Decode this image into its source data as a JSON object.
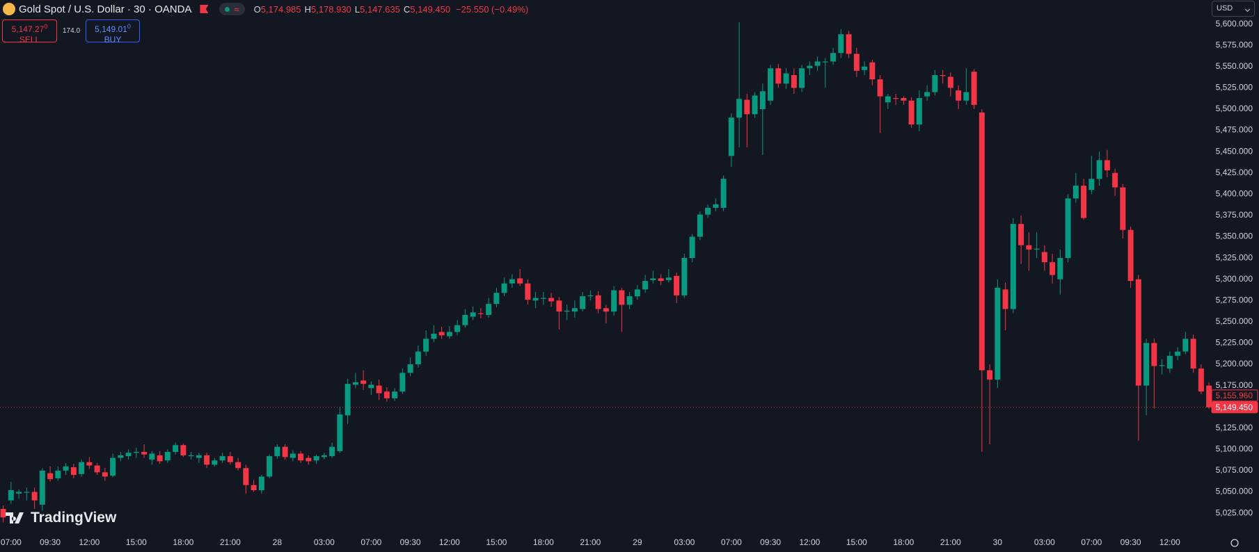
{
  "header": {
    "title": "Gold Spot / U.S. Dollar · 30 · OANDA",
    "indicator_icon": "≈",
    "ohlc_legend": [
      {
        "key": "O",
        "value": "5,174.985"
      },
      {
        "key": "H",
        "value": "5,178.930"
      },
      {
        "key": "L",
        "value": "5,147.635"
      },
      {
        "key": "C",
        "value": "5,149.450"
      }
    ],
    "change": "−25.550 (−0.49%)"
  },
  "trade": {
    "sell": {
      "price": "5,147.27",
      "pip": "0",
      "label": "SELL"
    },
    "spread": "174.0",
    "buy": {
      "price": "5,149.01",
      "pip": "0",
      "label": "BUY"
    }
  },
  "currency": "USD",
  "brand": "TradingView",
  "chart_data": {
    "type": "candlestick",
    "up_color": "#089981",
    "down_color": "#f23645",
    "grid": false,
    "ylim": [
      5001.4,
      5628.3
    ],
    "yticks": [
      {
        "value": 5025,
        "label": "5,025.000"
      },
      {
        "value": 5050,
        "label": "5,050.000"
      },
      {
        "value": 5075,
        "label": "5,075.000"
      },
      {
        "value": 5100,
        "label": "5,100.000"
      },
      {
        "value": 5125,
        "label": "5,125.000"
      },
      {
        "value": 5150,
        "label": "5,150.000"
      },
      {
        "value": 5175,
        "label": "5,175.000"
      },
      {
        "value": 5200,
        "label": "5,200.000"
      },
      {
        "value": 5225,
        "label": "5,225.000"
      },
      {
        "value": 5250,
        "label": "5,250.000"
      },
      {
        "value": 5275,
        "label": "5,275.000"
      },
      {
        "value": 5300,
        "label": "5,300.000"
      },
      {
        "value": 5325,
        "label": "5,325.000"
      },
      {
        "value": 5350,
        "label": "5,350.000"
      },
      {
        "value": 5375,
        "label": "5,375.000"
      },
      {
        "value": 5400,
        "label": "5,400.000"
      },
      {
        "value": 5425,
        "label": "5,425.000"
      },
      {
        "value": 5450,
        "label": "5,450.000"
      },
      {
        "value": 5475,
        "label": "5,475.000"
      },
      {
        "value": 5500,
        "label": "5,500.000"
      },
      {
        "value": 5525,
        "label": "5,525.000"
      },
      {
        "value": 5550,
        "label": "5,550.000"
      },
      {
        "value": 5575,
        "label": "5,575.000"
      },
      {
        "value": 5600,
        "label": "5,600.000"
      }
    ],
    "price_labels": [
      {
        "value": 5155.96,
        "label": "5,155.960"
      },
      {
        "value": 5149.45,
        "label": "5,149.450"
      }
    ],
    "categories": [
      null,
      "07:00",
      null,
      null,
      null,
      null,
      "09:30",
      null,
      null,
      null,
      null,
      "12:00",
      null,
      null,
      null,
      null,
      null,
      "15:00",
      null,
      null,
      null,
      null,
      null,
      "18:00",
      null,
      null,
      null,
      null,
      null,
      "21:00",
      null,
      null,
      null,
      null,
      null,
      "28",
      null,
      null,
      null,
      null,
      null,
      "03:00",
      null,
      null,
      null,
      null,
      null,
      "07:00",
      null,
      null,
      null,
      null,
      "09:30",
      null,
      null,
      null,
      null,
      "12:00",
      null,
      null,
      null,
      null,
      null,
      "15:00",
      null,
      null,
      null,
      null,
      null,
      "18:00",
      null,
      null,
      null,
      null,
      null,
      "21:00",
      null,
      null,
      null,
      null,
      null,
      "29",
      null,
      null,
      null,
      null,
      null,
      "03:00",
      null,
      null,
      null,
      null,
      null,
      "07:00",
      null,
      null,
      null,
      null,
      "09:30",
      null,
      null,
      null,
      null,
      "12:00",
      null,
      null,
      null,
      null,
      null,
      "15:00",
      null,
      null,
      null,
      null,
      null,
      "18:00",
      null,
      null,
      null,
      null,
      null,
      "21:00",
      null,
      null,
      null,
      null,
      null,
      "30",
      null,
      null,
      null,
      null,
      null,
      "03:00",
      null,
      null,
      null,
      null,
      null,
      "07:00",
      null,
      null,
      null,
      null,
      "09:30",
      null,
      null,
      null,
      null,
      "12:00",
      null,
      null,
      null,
      null,
      null
    ],
    "ohlc": [
      [
        5030,
        5034,
        5014,
        5020
      ],
      [
        5040,
        5062,
        5036,
        5052
      ],
      [
        5048,
        5053,
        5042,
        5050
      ],
      [
        5049,
        5055,
        5040,
        5050
      ],
      [
        5050,
        5055,
        5030,
        5040
      ],
      [
        5035,
        5078,
        5028,
        5075
      ],
      [
        5072,
        5080,
        5062,
        5065
      ],
      [
        5066,
        5080,
        5063,
        5075
      ],
      [
        5075,
        5084,
        5070,
        5080
      ],
      [
        5079,
        5083,
        5066,
        5070
      ],
      [
        5071,
        5088,
        5068,
        5085
      ],
      [
        5085,
        5091,
        5077,
        5081
      ],
      [
        5081,
        5084,
        5070,
        5073
      ],
      [
        5073,
        5078,
        5063,
        5068
      ],
      [
        5069,
        5095,
        5067,
        5090
      ],
      [
        5090,
        5097,
        5086,
        5093
      ],
      [
        5092,
        5100,
        5088,
        5096
      ],
      [
        5096,
        5102,
        5090,
        5097
      ],
      [
        5097,
        5106,
        5090,
        5094
      ],
      [
        5088,
        5098,
        5082,
        5095
      ],
      [
        5093,
        5098,
        5083,
        5086
      ],
      [
        5087,
        5100,
        5084,
        5097
      ],
      [
        5097,
        5108,
        5094,
        5105
      ],
      [
        5105,
        5107,
        5091,
        5093
      ],
      [
        5092,
        5097,
        5088,
        5093
      ],
      [
        5090,
        5096,
        5084,
        5093
      ],
      [
        5093,
        5096,
        5078,
        5082
      ],
      [
        5082,
        5090,
        5080,
        5087
      ],
      [
        5087,
        5096,
        5084,
        5092
      ],
      [
        5092,
        5097,
        5082,
        5085
      ],
      [
        5085,
        5090,
        5075,
        5078
      ],
      [
        5078,
        5082,
        5048,
        5058
      ],
      [
        5058,
        5064,
        5050,
        5052
      ],
      [
        5052,
        5070,
        5048,
        5068
      ],
      [
        5068,
        5094,
        5066,
        5092
      ],
      [
        5092,
        5106,
        5089,
        5103
      ],
      [
        5103,
        5106,
        5088,
        5091
      ],
      [
        5090,
        5099,
        5086,
        5095
      ],
      [
        5095,
        5098,
        5084,
        5087
      ],
      [
        5090,
        5093,
        5082,
        5086
      ],
      [
        5087,
        5094,
        5083,
        5092
      ],
      [
        5091,
        5096,
        5088,
        5093
      ],
      [
        5092,
        5108,
        5090,
        5103
      ],
      [
        5098,
        5150,
        5096,
        5141
      ],
      [
        5140,
        5183,
        5130,
        5177
      ],
      [
        5176,
        5190,
        5172,
        5179
      ],
      [
        5181,
        5193,
        5170,
        5177
      ],
      [
        5172,
        5180,
        5164,
        5176
      ],
      [
        5175,
        5182,
        5158,
        5166
      ],
      [
        5168,
        5173,
        5156,
        5160
      ],
      [
        5160,
        5172,
        5157,
        5168
      ],
      [
        5168,
        5195,
        5165,
        5190
      ],
      [
        5190,
        5208,
        5186,
        5200
      ],
      [
        5200,
        5222,
        5196,
        5215
      ],
      [
        5215,
        5240,
        5210,
        5230
      ],
      [
        5230,
        5246,
        5226,
        5236
      ],
      [
        5238,
        5244,
        5230,
        5234
      ],
      [
        5233,
        5245,
        5230,
        5238
      ],
      [
        5238,
        5252,
        5234,
        5246
      ],
      [
        5246,
        5265,
        5243,
        5258
      ],
      [
        5256,
        5268,
        5252,
        5261
      ],
      [
        5260,
        5266,
        5254,
        5259
      ],
      [
        5258,
        5278,
        5255,
        5271
      ],
      [
        5271,
        5290,
        5267,
        5284
      ],
      [
        5284,
        5302,
        5280,
        5295
      ],
      [
        5295,
        5306,
        5290,
        5300
      ],
      [
        5301,
        5312,
        5292,
        5295
      ],
      [
        5295,
        5300,
        5270,
        5276
      ],
      [
        5275,
        5285,
        5266,
        5278
      ],
      [
        5277,
        5285,
        5270,
        5278
      ],
      [
        5278,
        5284,
        5268,
        5274
      ],
      [
        5275,
        5279,
        5241,
        5262
      ],
      [
        5262,
        5270,
        5252,
        5263
      ],
      [
        5262,
        5275,
        5255,
        5266
      ],
      [
        5265,
        5285,
        5262,
        5280
      ],
      [
        5280,
        5287,
        5275,
        5281
      ],
      [
        5281,
        5286,
        5260,
        5265
      ],
      [
        5266,
        5270,
        5248,
        5262
      ],
      [
        5262,
        5292,
        5257,
        5287
      ],
      [
        5287,
        5290,
        5238,
        5270
      ],
      [
        5270,
        5285,
        5265,
        5280
      ],
      [
        5280,
        5293,
        5276,
        5288
      ],
      [
        5288,
        5305,
        5284,
        5298
      ],
      [
        5299,
        5310,
        5295,
        5301
      ],
      [
        5301,
        5306,
        5293,
        5298
      ],
      [
        5299,
        5312,
        5296,
        5302
      ],
      [
        5304,
        5308,
        5272,
        5281
      ],
      [
        5281,
        5330,
        5278,
        5325
      ],
      [
        5325,
        5353,
        5320,
        5350
      ],
      [
        5350,
        5380,
        5346,
        5376
      ],
      [
        5376,
        5388,
        5372,
        5384
      ],
      [
        5384,
        5395,
        5380,
        5388
      ],
      [
        5384,
        5422,
        5380,
        5418
      ],
      [
        5445,
        5495,
        5432,
        5490
      ],
      [
        5490,
        5602,
        5455,
        5512
      ],
      [
        5511,
        5518,
        5455,
        5494
      ],
      [
        5494,
        5520,
        5490,
        5516
      ],
      [
        5500,
        5530,
        5446,
        5521
      ],
      [
        5510,
        5552,
        5505,
        5548
      ],
      [
        5548,
        5553,
        5525,
        5530
      ],
      [
        5530,
        5548,
        5524,
        5542
      ],
      [
        5540,
        5548,
        5518,
        5525
      ],
      [
        5525,
        5552,
        5520,
        5548
      ],
      [
        5548,
        5556,
        5540,
        5551
      ],
      [
        5551,
        5562,
        5545,
        5556
      ],
      [
        5555,
        5560,
        5525,
        5556
      ],
      [
        5556,
        5572,
        5552,
        5566
      ],
      [
        5566,
        5594,
        5560,
        5588
      ],
      [
        5588,
        5592,
        5560,
        5565
      ],
      [
        5565,
        5572,
        5538,
        5545
      ],
      [
        5546,
        5556,
        5540,
        5550
      ],
      [
        5555,
        5558,
        5528,
        5535
      ],
      [
        5535,
        5540,
        5472,
        5515
      ],
      [
        5508,
        5518,
        5500,
        5515
      ],
      [
        5513,
        5518,
        5505,
        5512
      ],
      [
        5513,
        5515,
        5505,
        5510
      ],
      [
        5510,
        5514,
        5478,
        5482
      ],
      [
        5482,
        5522,
        5474,
        5513
      ],
      [
        5515,
        5528,
        5510,
        5520
      ],
      [
        5520,
        5546,
        5516,
        5540
      ],
      [
        5540,
        5546,
        5530,
        5539
      ],
      [
        5538,
        5543,
        5515,
        5525
      ],
      [
        5522,
        5528,
        5500,
        5510
      ],
      [
        5510,
        5548,
        5505,
        5520
      ],
      [
        5544,
        5547,
        5500,
        5505
      ],
      [
        5496,
        5500,
        5097,
        5193
      ],
      [
        5193,
        5200,
        5106,
        5182
      ],
      [
        5182,
        5300,
        5172,
        5290
      ],
      [
        5288,
        5296,
        5240,
        5265
      ],
      [
        5265,
        5372,
        5260,
        5365
      ],
      [
        5365,
        5375,
        5318,
        5340
      ],
      [
        5340,
        5355,
        5310,
        5335
      ],
      [
        5335,
        5355,
        5325,
        5336
      ],
      [
        5332,
        5340,
        5310,
        5320
      ],
      [
        5320,
        5330,
        5295,
        5305
      ],
      [
        5300,
        5335,
        5282,
        5325
      ],
      [
        5325,
        5400,
        5320,
        5395
      ],
      [
        5395,
        5425,
        5390,
        5410
      ],
      [
        5410,
        5418,
        5370,
        5372
      ],
      [
        5405,
        5445,
        5400,
        5418
      ],
      [
        5418,
        5450,
        5410,
        5440
      ],
      [
        5440,
        5452,
        5420,
        5428
      ],
      [
        5425,
        5430,
        5398,
        5408
      ],
      [
        5408,
        5412,
        5348,
        5358
      ],
      [
        5358,
        5362,
        5290,
        5298
      ],
      [
        5300,
        5305,
        5110,
        5175
      ],
      [
        5175,
        5230,
        5140,
        5225
      ],
      [
        5225,
        5230,
        5148,
        5198
      ],
      [
        5198,
        5206,
        5188,
        5199
      ],
      [
        5195,
        5215,
        5190,
        5210
      ],
      [
        5210,
        5220,
        5205,
        5215
      ],
      [
        5215,
        5238,
        5212,
        5230
      ],
      [
        5230,
        5235,
        5190,
        5195
      ],
      [
        5195,
        5200,
        5165,
        5168
      ],
      [
        5174.985,
        5178.93,
        5147.635,
        5149.45
      ]
    ]
  }
}
